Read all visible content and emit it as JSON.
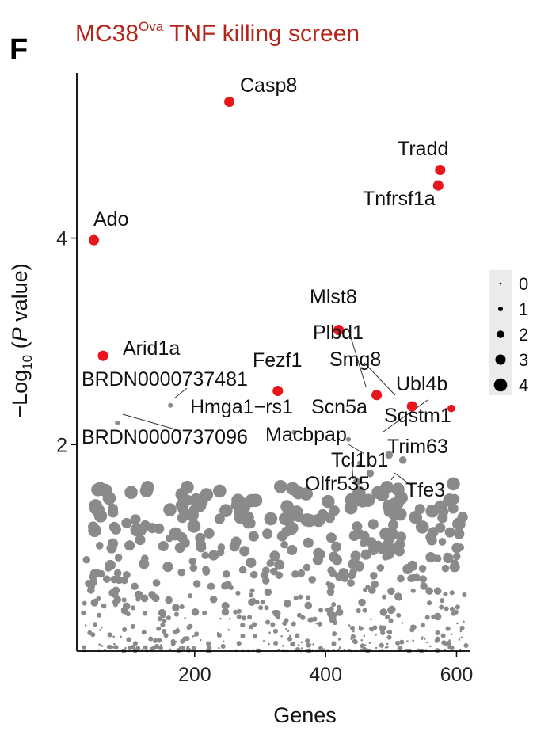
{
  "panel_label": "F",
  "title": {
    "main": "MC38",
    "superscript": "Ova",
    "rest": " TNF killing screen"
  },
  "chart_data": {
    "type": "scatter",
    "xlabel": "Genes",
    "ylabel_parts": [
      "−Log",
      "10",
      " (",
      "P",
      " value)"
    ],
    "xlim": [
      20,
      620
    ],
    "ylim": [
      0,
      5.6
    ],
    "xticks": [
      200,
      400,
      600
    ],
    "yticks": [
      2,
      4
    ],
    "grid": false,
    "colors": {
      "highlight": "#e8161b",
      "background": "#8a8a8a",
      "title": "#b52418"
    },
    "size_legend": {
      "position": "right",
      "entries": [
        {
          "label": "0",
          "size": 0
        },
        {
          "label": "1",
          "size": 1
        },
        {
          "label": "2",
          "size": 2
        },
        {
          "label": "3",
          "size": 3
        },
        {
          "label": "4",
          "size": 4
        }
      ]
    },
    "highlighted": [
      {
        "gene": "Casp8",
        "x": 253,
        "y": 5.32,
        "size": 3
      },
      {
        "gene": "Tradd",
        "x": 575,
        "y": 4.66,
        "size": 3
      },
      {
        "gene": "Tnfrsf1a",
        "x": 572,
        "y": 4.51,
        "size": 3
      },
      {
        "gene": "Ado",
        "x": 46,
        "y": 3.98,
        "size": 3
      },
      {
        "gene": "Mlst8",
        "x": 420,
        "y": 3.11,
        "size": 3
      },
      {
        "gene": "Arid1a",
        "x": 60,
        "y": 2.86,
        "size": 3
      },
      {
        "gene": "Fezf1",
        "x": 327,
        "y": 2.52,
        "size": 3
      },
      {
        "gene": "Plbd1",
        "x": 478,
        "y": 2.48,
        "size": 3
      },
      {
        "gene": "Smg8",
        "x": 532,
        "y": 2.37,
        "size": 3
      },
      {
        "gene": "Ubl4b",
        "x": 592,
        "y": 2.35,
        "size": 2
      }
    ],
    "labeled_gray": [
      {
        "gene": "BRDN0000737481",
        "x": 163,
        "y": 2.38,
        "size": 1
      },
      {
        "gene": "BRDN0000737096",
        "x": 82,
        "y": 2.21,
        "size": 1
      },
      {
        "gene": "Hmga1−rs1",
        "x": 352,
        "y": 2.12,
        "size": 1
      },
      {
        "gene": "Scn5a",
        "x": 435,
        "y": 2.05,
        "size": 1
      },
      {
        "gene": "Macbpap",
        "x": 452,
        "y": 1.82,
        "size": 1
      },
      {
        "gene": "Sqstm1",
        "x": 497,
        "y": 1.9,
        "size": 2
      },
      {
        "gene": "Trim63",
        "x": 518,
        "y": 1.85,
        "size": 2
      },
      {
        "gene": "Tcl1b1",
        "x": 468,
        "y": 1.72,
        "size": 2
      },
      {
        "gene": "Olfr535",
        "x": 448,
        "y": 1.64,
        "size": 2
      },
      {
        "gene": "Tfe3",
        "x": 515,
        "y": 1.48,
        "size": 2
      }
    ]
  }
}
